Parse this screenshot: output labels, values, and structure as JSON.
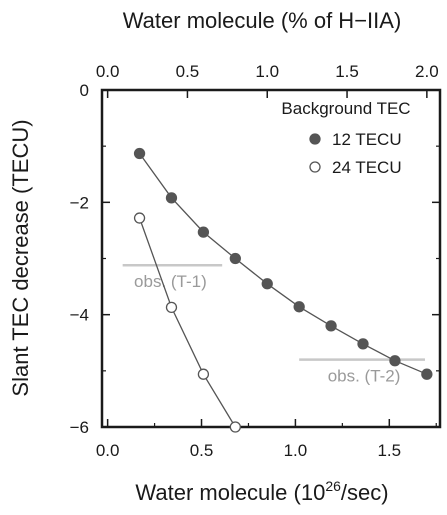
{
  "chart_data": {
    "type": "line",
    "top_axis_label": "Water molecule (% of H−IIA)",
    "top_axis_ticks": [
      "0.0",
      "0.5",
      "1.0",
      "1.5",
      "2.0"
    ],
    "top_axis_range": [
      0,
      2.0
    ],
    "xlabel_prefix": "Water molecule (10",
    "xlabel_exponent": "26",
    "xlabel_suffix": "/sec)",
    "ylabel": "Slant TEC decrease (TECU)",
    "xlim": [
      -0.03,
      1.77
    ],
    "ylim": [
      -6,
      0
    ],
    "x_ticks": [
      0.0,
      0.5,
      1.0,
      1.5
    ],
    "x_tick_labels": [
      "0.0",
      "0.5",
      "1.0",
      "1.5"
    ],
    "y_ticks": [
      0,
      -2,
      -4,
      -6
    ],
    "y_tick_labels": [
      "0",
      "−2",
      "−4",
      "−6"
    ],
    "legend_title": "Background TEC",
    "legend_position": "top-right",
    "grid": false,
    "series": [
      {
        "name": "12 TECU",
        "marker": "filled-circle",
        "x": [
          0.17,
          0.34,
          0.51,
          0.68,
          0.85,
          1.02,
          1.19,
          1.36,
          1.53,
          1.7
        ],
        "y": [
          -1.13,
          -1.92,
          -2.53,
          -3.0,
          -3.45,
          -3.86,
          -4.2,
          -4.52,
          -4.82,
          -5.06
        ]
      },
      {
        "name": "24 TECU",
        "marker": "open-circle",
        "x": [
          0.17,
          0.34,
          0.51,
          0.68
        ],
        "y": [
          -2.28,
          -3.87,
          -5.06,
          -6.0
        ]
      }
    ],
    "observations": [
      {
        "label": "obs. (T-1)",
        "y": -3.12,
        "x_range": [
          0.08,
          0.61
        ]
      },
      {
        "label": "obs. (T-2)",
        "y": -4.8,
        "x_range": [
          1.02,
          1.69
        ]
      }
    ],
    "colors": {
      "axis": "#1a1a1a",
      "series_line": "#555555",
      "filled_marker": "#555555",
      "open_marker_fill": "#ffffff",
      "obs_line": "#c8c8c8",
      "obs_text": "#9a9a9a"
    }
  }
}
